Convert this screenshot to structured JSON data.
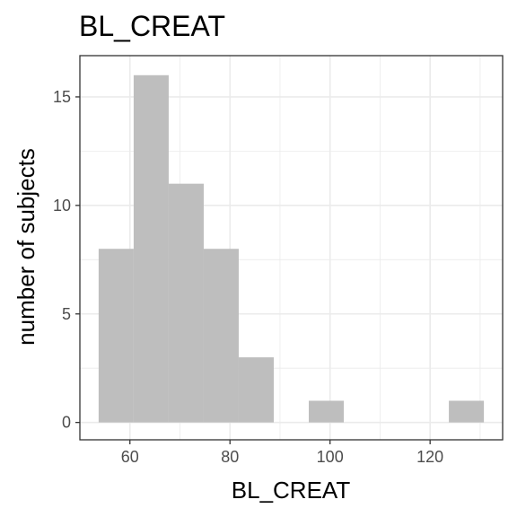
{
  "chart_data": {
    "type": "bar",
    "title": "BL_CREAT",
    "xlabel": "BL_CREAT",
    "ylabel": "number of subjects",
    "bins": [
      {
        "x0": 53.75,
        "x1": 60.75,
        "count": 8
      },
      {
        "x0": 60.75,
        "x1": 67.75,
        "count": 16
      },
      {
        "x0": 67.75,
        "x1": 74.75,
        "count": 11
      },
      {
        "x0": 74.75,
        "x1": 81.75,
        "count": 8
      },
      {
        "x0": 81.75,
        "x1": 88.75,
        "count": 3
      },
      {
        "x0": 88.75,
        "x1": 95.75,
        "count": 0
      },
      {
        "x0": 95.75,
        "x1": 102.75,
        "count": 1
      },
      {
        "x0": 102.75,
        "x1": 109.75,
        "count": 0
      },
      {
        "x0": 109.75,
        "x1": 116.75,
        "count": 0
      },
      {
        "x0": 116.75,
        "x1": 123.75,
        "count": 0
      },
      {
        "x0": 123.75,
        "x1": 130.75,
        "count": 1
      }
    ],
    "xlim": [
      50,
      134.5
    ],
    "ylim": [
      -0.8,
      16.9
    ],
    "x_ticks": [
      60,
      80,
      100,
      120
    ],
    "x_minor_ticks": [
      50,
      70,
      90,
      110,
      130
    ],
    "y_ticks": [
      0,
      5,
      10,
      15
    ],
    "y_minor_ticks": [
      2.5,
      7.5,
      12.5
    ],
    "bar_color": "#bebebe",
    "grid": true,
    "grid_color": "#ebebeb",
    "panel_border_color": "#333333"
  }
}
